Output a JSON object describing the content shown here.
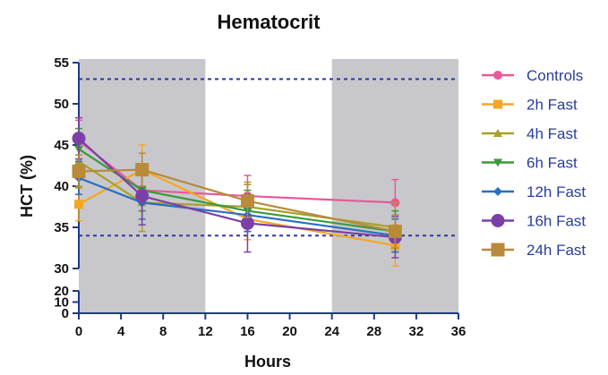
{
  "chart_data": {
    "type": "line",
    "title": "Hematocrit",
    "xlabel": "Hours",
    "ylabel": "HCT (%)",
    "xlim": [
      0,
      36
    ],
    "x_ticks": [
      "0",
      "4",
      "8",
      "12",
      "16",
      "20",
      "24",
      "28",
      "32",
      "36"
    ],
    "y_ticks_upper": [
      "30",
      "35",
      "40",
      "45",
      "50",
      "55"
    ],
    "y_ticks_lower": [
      "0",
      "10",
      "20"
    ],
    "y_axis_break": {
      "lower_range": [
        0,
        20
      ],
      "upper_range": [
        30,
        55
      ]
    },
    "shaded_x_ranges": [
      [
        0,
        12
      ],
      [
        24,
        36
      ]
    ],
    "reference_lines": [
      53,
      34
    ],
    "colors": {
      "shade": "#c8c8cc",
      "reference_line": "#2b3a9e",
      "axis": "#1e3a8a",
      "legend_text": "#2a3d9c"
    },
    "legend_position": "right",
    "series": [
      {
        "name": "Controls",
        "color": "#e8589a",
        "marker": "circle",
        "x": [
          0,
          6,
          16,
          30
        ],
        "y": [
          45.5,
          39.5,
          38.8,
          38.0
        ],
        "err": [
          2.5,
          2.5,
          2.5,
          2.8
        ]
      },
      {
        "name": "2h Fast",
        "color": "#f5a623",
        "marker": "square",
        "x": [
          0,
          6,
          16,
          30
        ],
        "y": [
          37.8,
          42.0,
          36.0,
          32.8
        ],
        "err": [
          2.0,
          3.0,
          2.5,
          2.5
        ]
      },
      {
        "name": "4h Fast",
        "color": "#a9a02a",
        "marker": "triangle-up",
        "x": [
          0,
          6,
          16,
          30
        ],
        "y": [
          43.0,
          38.0,
          37.5,
          35.0
        ],
        "err": [
          3.0,
          3.5,
          3.0,
          3.0
        ]
      },
      {
        "name": "6h Fast",
        "color": "#3a9a3a",
        "marker": "triangle-down",
        "x": [
          0,
          6,
          16,
          30
        ],
        "y": [
          44.5,
          39.5,
          37.0,
          34.5
        ],
        "err": [
          2.5,
          2.5,
          2.5,
          2.5
        ]
      },
      {
        "name": "12h Fast",
        "color": "#2a6fc0",
        "marker": "diamond",
        "x": [
          0,
          6,
          16,
          30
        ],
        "y": [
          41.0,
          38.0,
          36.5,
          34.0
        ],
        "err": [
          2.0,
          2.0,
          2.0,
          2.0
        ]
      },
      {
        "name": "16h Fast",
        "color": "#7b3fa8",
        "marker": "circle",
        "x": [
          0,
          6,
          16,
          30
        ],
        "y": [
          45.8,
          38.8,
          35.5,
          33.8
        ],
        "err": [
          2.5,
          3.5,
          3.5,
          2.5
        ]
      },
      {
        "name": "24h Fast",
        "color": "#b88a3a",
        "marker": "square",
        "x": [
          0,
          6,
          16,
          30
        ],
        "y": [
          41.8,
          42.0,
          38.2,
          34.5
        ],
        "err": [
          2.0,
          2.0,
          2.0,
          2.0
        ]
      }
    ]
  }
}
